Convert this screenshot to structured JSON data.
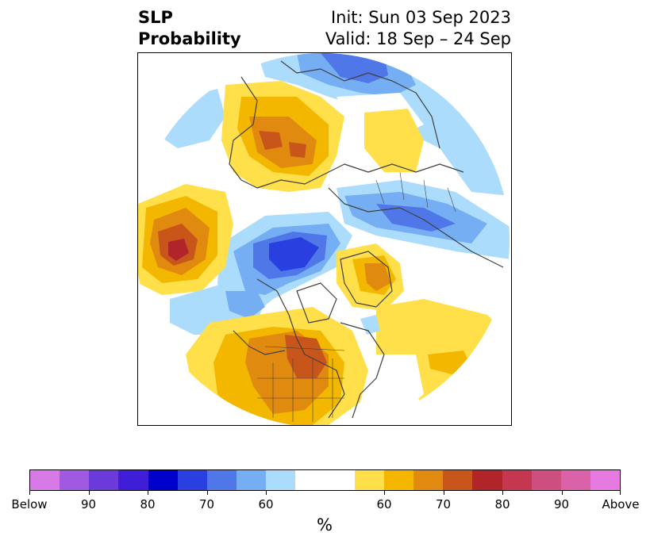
{
  "title": {
    "left_line1": "SLP",
    "left_line2": "Probability",
    "right_line1": "Init: Sun 03 Sep 2023",
    "right_line2": "Valid: 18 Sep – 24 Sep"
  },
  "colorbar": {
    "unit": "%",
    "colors": [
      "#d77ae8",
      "#a059e1",
      "#6b3ad9",
      "#3e1ed6",
      "#0000cc",
      "#2a3fe0",
      "#4f77e8",
      "#75aef2",
      "#acdcfb",
      "#ffffff",
      "#ffffff",
      "#ffe04a",
      "#f3b700",
      "#e08a10",
      "#c8561a",
      "#b0242a",
      "#c4374f",
      "#cc4f7f",
      "#da62a9",
      "#e77ae0"
    ],
    "tick_labels": [
      {
        "label": "Below",
        "seg": 0
      },
      {
        "label": "90",
        "seg": 2
      },
      {
        "label": "80",
        "seg": 4
      },
      {
        "label": "70",
        "seg": 6
      },
      {
        "label": "60",
        "seg": 8
      },
      {
        "label": "60",
        "seg": 12
      },
      {
        "label": "70",
        "seg": 14
      },
      {
        "label": "80",
        "seg": 16
      },
      {
        "label": "90",
        "seg": 18
      },
      {
        "label": "Above",
        "seg": 20
      }
    ]
  },
  "map": {
    "projection": "north-polar-stereographic",
    "colors": {
      "below_40": "#acdcfb",
      "below_50": "#75aef2",
      "below_60": "#4f77e8",
      "below_70": "#2a3fe0",
      "above_40": "#ffe04a",
      "above_50": "#f3b700",
      "above_60": "#e08a10",
      "above_70": "#c8561a",
      "above_80": "#b0242a",
      "coast": "#404040"
    }
  }
}
